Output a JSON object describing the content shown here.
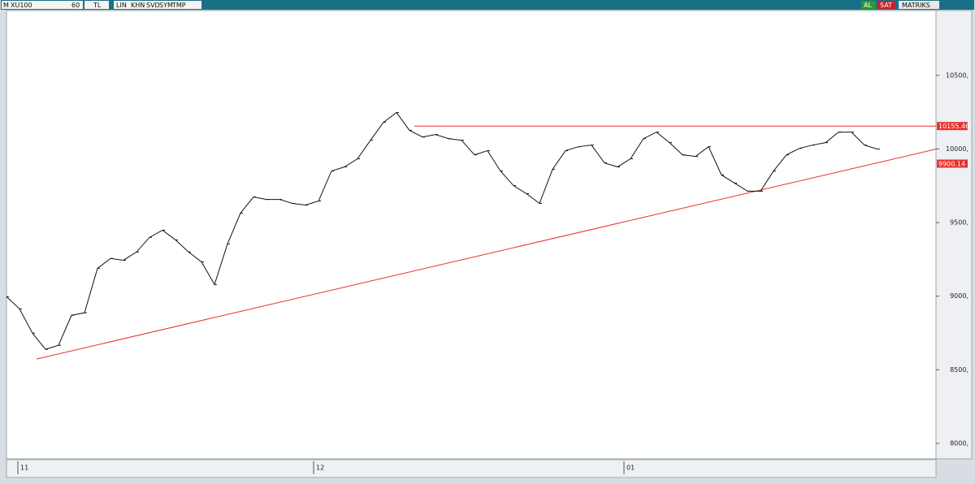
{
  "toolbar": {
    "menu": "M",
    "symbol": "XU100",
    "period": "60",
    "currency": "TL",
    "buttons": [
      "LIN",
      "KHN",
      "SVD",
      "SYM",
      "TMP"
    ],
    "buy": "AL",
    "sell": "SAT",
    "brand": "MATRIKS"
  },
  "chart_data": {
    "type": "line",
    "color": "#111111",
    "x": [
      0,
      4,
      8,
      12,
      16,
      20,
      24,
      28,
      32,
      36,
      40,
      44,
      48,
      52,
      56,
      60,
      64,
      68,
      72,
      76,
      80,
      84,
      88,
      92,
      96,
      100,
      104,
      108,
      112,
      116,
      120,
      124,
      128,
      132,
      136,
      140,
      144,
      148,
      152,
      156,
      160,
      164,
      168,
      172,
      176,
      180,
      184,
      188,
      192,
      196,
      200,
      204,
      208,
      212,
      216,
      220,
      224,
      228,
      232,
      236,
      240,
      244,
      248,
      252,
      256,
      260,
      264,
      268
    ],
    "values": [
      8997,
      8914,
      8749,
      8639,
      8666,
      8870,
      8887,
      9189,
      9256,
      9244,
      9300,
      9399,
      9448,
      9382,
      9300,
      9233,
      9079,
      9355,
      9564,
      9674,
      9657,
      9657,
      9630,
      9619,
      9646,
      9850,
      9878,
      9933,
      10059,
      10181,
      10247,
      10126,
      10081,
      10098,
      10070,
      10059,
      9960,
      9988,
      9850,
      9751,
      9696,
      9630,
      9861,
      9988,
      10015,
      10026,
      9905,
      9878,
      9933,
      10070,
      10114,
      10043,
      9960,
      9949,
      10015,
      9823,
      9768,
      9713,
      9713,
      9850,
      9960,
      10004,
      10026,
      10043,
      10114,
      10114,
      10026,
      9999
    ],
    "xlim": [
      0,
      286
    ],
    "xticks": [
      {
        "value": 3.5,
        "label": "11"
      },
      {
        "value": 94.5,
        "label": "12"
      },
      {
        "value": 190,
        "label": "01"
      }
    ],
    "ylim": [
      7895,
      10940
    ],
    "yticks": [
      {
        "value": 8000,
        "label": "8000,"
      },
      {
        "value": 8500,
        "label": "8500,"
      },
      {
        "value": 9000,
        "label": "9000,"
      },
      {
        "value": 9500,
        "label": "9500,"
      },
      {
        "value": 10000,
        "label": "10000,"
      },
      {
        "value": 10500,
        "label": "10500,"
      }
    ],
    "trend_lines": [
      {
        "x": [
          125.5,
          286
        ],
        "y": [
          10155.46,
          10155.46
        ],
        "color": "#e8312b"
      },
      {
        "x": [
          9.25,
          286
        ],
        "y": [
          8573,
          9999
        ],
        "color": "#e8312b"
      }
    ],
    "level_labels": [
      10155.46,
      9900.14
    ]
  }
}
